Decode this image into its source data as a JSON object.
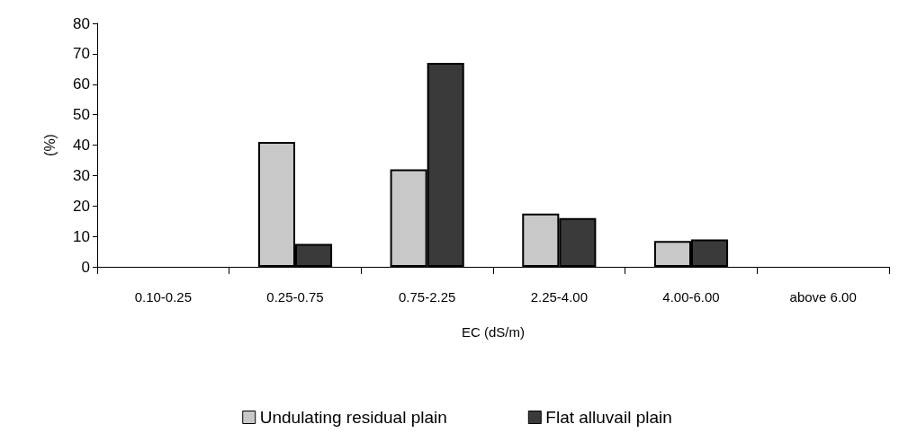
{
  "chart_data": {
    "type": "bar",
    "xlabel": "EC (dS/m)",
    "ylabel": "(%)",
    "categories": [
      "0.10-0.25",
      "0.25-0.75",
      "0.75-2.25",
      "2.25-4.00",
      "4.00-6.00",
      "above 6.00"
    ],
    "series": [
      {
        "name": "Undulating residual plain",
        "color": "#c8c8c8",
        "values": [
          null,
          41,
          32,
          17.5,
          8.5,
          null
        ]
      },
      {
        "name": "Flat alluvail plain",
        "color": "#3a3a3a",
        "values": [
          null,
          7.5,
          67,
          16,
          9,
          null
        ]
      }
    ],
    "ylim": [
      0,
      80
    ],
    "yticks": [
      0,
      10,
      20,
      30,
      40,
      50,
      60,
      70,
      80
    ],
    "grid": false,
    "legend": "bottom"
  }
}
